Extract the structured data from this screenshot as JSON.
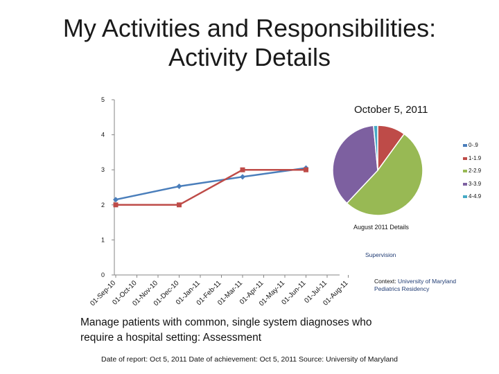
{
  "page": {
    "title_line1": "My Activities and Responsibilities:",
    "title_line2": "Activity Details",
    "caption_line1": "Manage patients with common, single system diagnoses who",
    "caption_line2": "require a hospital setting: Assessment",
    "footer": "Date of report: Oct 5, 2011 Date of achievement: Oct 5, 2011 Source: University of Maryland"
  },
  "pie_panel": {
    "title": "October 5, 2011",
    "subtitle": "August 2011 Details",
    "supervision_label": "Supervision",
    "context_label": "Context:",
    "context_value_line1": "University of Maryland",
    "context_value_line2": "Pediatrics Residency"
  },
  "chart_data": [
    {
      "type": "line",
      "categories": [
        "01-Sep-10",
        "01-Oct-10",
        "01-Nov-10",
        "01-Dec-10",
        "01-Jan-11",
        "01-Feb-11",
        "01-Mar-11",
        "01-Apr-11",
        "01-May-11",
        "01-Jun-11",
        "01-Jul-11",
        "01-Aug-11"
      ],
      "series": [
        {
          "color": "#4a7ebb",
          "marker": "diamond",
          "values": [
            2.15,
            null,
            null,
            2.53,
            null,
            null,
            2.8,
            null,
            null,
            3.05,
            null,
            null
          ]
        },
        {
          "color": "#be4b48",
          "marker": "square",
          "values": [
            2.0,
            null,
            null,
            2.0,
            null,
            null,
            3.0,
            null,
            null,
            3.0,
            null,
            null
          ]
        }
      ],
      "ylim": [
        0,
        5
      ],
      "yticks": [
        "0",
        "1",
        "2",
        "3",
        "4",
        "5"
      ],
      "grid": false
    },
    {
      "type": "pie",
      "labels": [
        "0-.9",
        "1-1.9",
        "2-2.9",
        "3-3.9",
        "4-4.9"
      ],
      "values": [
        0,
        0.1,
        0.52,
        0.365,
        0.015
      ],
      "colors": [
        "#4a7ebb",
        "#be4b48",
        "#98b954",
        "#7d60a0",
        "#46aac5"
      ],
      "legend": "right"
    }
  ]
}
